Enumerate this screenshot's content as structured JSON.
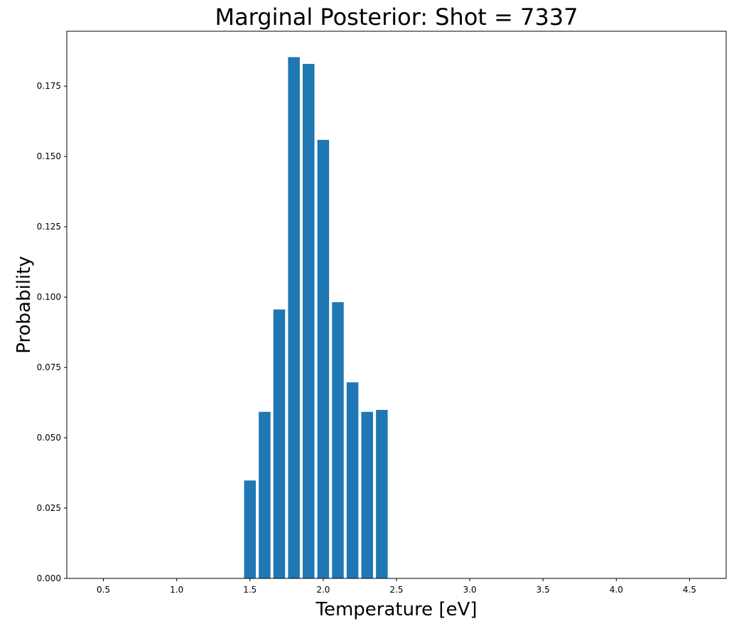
{
  "chart_data": {
    "type": "bar",
    "title": "Marginal Posterior: Shot = 7337",
    "xlabel": "Temperature [eV]",
    "ylabel": "Probability",
    "x": [
      1.5,
      1.6,
      1.7,
      1.8,
      1.9,
      2.0,
      2.1,
      2.2,
      2.3,
      2.4
    ],
    "values": [
      0.0348,
      0.0592,
      0.0956,
      0.1853,
      0.1829,
      0.1559,
      0.0982,
      0.0697,
      0.0592,
      0.0599
    ],
    "bar_width": 0.08,
    "xlim": [
      0.25,
      4.75
    ],
    "ylim": [
      0.0,
      0.1945
    ],
    "xticks": [
      "0.5",
      "1.0",
      "1.5",
      "2.0",
      "2.5",
      "3.0",
      "3.5",
      "4.0",
      "4.5"
    ],
    "yticks": [
      "0.000",
      "0.025",
      "0.050",
      "0.075",
      "0.100",
      "0.125",
      "0.150",
      "0.175"
    ],
    "bar_color": "#1f77b4",
    "grid": false,
    "legend": "none"
  }
}
